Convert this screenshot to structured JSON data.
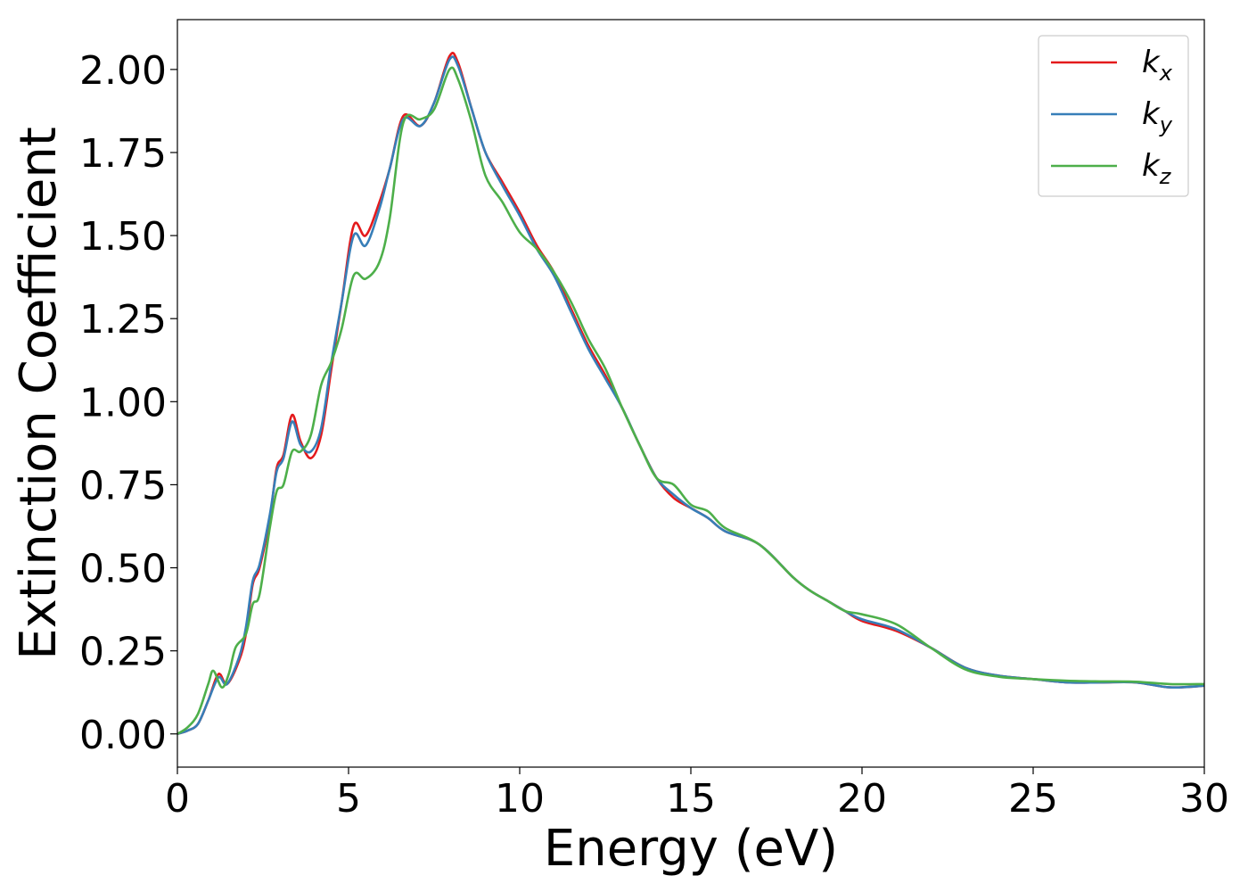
{
  "chart_data": {
    "type": "line",
    "xlabel": "Energy (eV)",
    "ylabel": "Extinction Coefficient",
    "xlim": [
      0,
      30
    ],
    "ylim": [
      -0.1,
      2.15
    ],
    "xticks": [
      "0",
      "5",
      "10",
      "15",
      "20",
      "25",
      "30"
    ],
    "yticks": [
      "0.00",
      "0.25",
      "0.50",
      "0.75",
      "1.00",
      "1.25",
      "1.50",
      "1.75",
      "2.00"
    ],
    "grid": false,
    "legend_position": "top-right",
    "series": [
      {
        "name": "k_x",
        "label_main": "k",
        "label_sub": "x",
        "color": "#e41a1c",
        "points": [
          [
            0,
            0.0
          ],
          [
            0.3,
            0.01
          ],
          [
            0.6,
            0.03
          ],
          [
            0.9,
            0.1
          ],
          [
            1.2,
            0.18
          ],
          [
            1.45,
            0.15
          ],
          [
            1.8,
            0.22
          ],
          [
            2.0,
            0.3
          ],
          [
            2.2,
            0.45
          ],
          [
            2.4,
            0.5
          ],
          [
            2.7,
            0.65
          ],
          [
            2.9,
            0.8
          ],
          [
            3.1,
            0.84
          ],
          [
            3.35,
            0.96
          ],
          [
            3.6,
            0.88
          ],
          [
            3.9,
            0.83
          ],
          [
            4.2,
            0.9
          ],
          [
            4.5,
            1.1
          ],
          [
            4.8,
            1.3
          ],
          [
            5.15,
            1.53
          ],
          [
            5.5,
            1.5
          ],
          [
            5.9,
            1.6
          ],
          [
            6.2,
            1.7
          ],
          [
            6.6,
            1.86
          ],
          [
            7.1,
            1.83
          ],
          [
            7.5,
            1.9
          ],
          [
            7.95,
            2.04
          ],
          [
            8.2,
            2.02
          ],
          [
            8.6,
            1.88
          ],
          [
            9.0,
            1.75
          ],
          [
            9.5,
            1.66
          ],
          [
            10.0,
            1.57
          ],
          [
            10.5,
            1.47
          ],
          [
            11.0,
            1.39
          ],
          [
            11.5,
            1.28
          ],
          [
            12.0,
            1.17
          ],
          [
            12.5,
            1.08
          ],
          [
            13.0,
            0.98
          ],
          [
            13.5,
            0.87
          ],
          [
            14.0,
            0.77
          ],
          [
            14.5,
            0.71
          ],
          [
            15.0,
            0.68
          ],
          [
            15.5,
            0.65
          ],
          [
            16.0,
            0.61
          ],
          [
            17.0,
            0.57
          ],
          [
            18.0,
            0.47
          ],
          [
            18.5,
            0.43
          ],
          [
            19.0,
            0.4
          ],
          [
            19.5,
            0.37
          ],
          [
            20.0,
            0.34
          ],
          [
            21.0,
            0.31
          ],
          [
            22.0,
            0.26
          ],
          [
            23.0,
            0.2
          ],
          [
            24.0,
            0.175
          ],
          [
            25.0,
            0.165
          ],
          [
            26.0,
            0.155
          ],
          [
            27.0,
            0.155
          ],
          [
            28.0,
            0.155
          ],
          [
            29.0,
            0.14
          ],
          [
            30.0,
            0.145
          ]
        ]
      },
      {
        "name": "k_y",
        "label_main": "k",
        "label_sub": "y",
        "color": "#377eb8",
        "points": [
          [
            0,
            0.0
          ],
          [
            0.3,
            0.01
          ],
          [
            0.6,
            0.03
          ],
          [
            0.9,
            0.1
          ],
          [
            1.2,
            0.17
          ],
          [
            1.45,
            0.15
          ],
          [
            1.8,
            0.23
          ],
          [
            2.0,
            0.32
          ],
          [
            2.2,
            0.46
          ],
          [
            2.4,
            0.51
          ],
          [
            2.7,
            0.66
          ],
          [
            2.9,
            0.79
          ],
          [
            3.1,
            0.83
          ],
          [
            3.35,
            0.94
          ],
          [
            3.6,
            0.87
          ],
          [
            3.9,
            0.85
          ],
          [
            4.2,
            0.92
          ],
          [
            4.5,
            1.12
          ],
          [
            4.8,
            1.3
          ],
          [
            5.15,
            1.5
          ],
          [
            5.5,
            1.47
          ],
          [
            5.9,
            1.58
          ],
          [
            6.2,
            1.7
          ],
          [
            6.6,
            1.85
          ],
          [
            7.1,
            1.83
          ],
          [
            7.5,
            1.9
          ],
          [
            7.95,
            2.03
          ],
          [
            8.2,
            2.01
          ],
          [
            8.6,
            1.88
          ],
          [
            9.0,
            1.75
          ],
          [
            9.5,
            1.65
          ],
          [
            10.0,
            1.56
          ],
          [
            10.5,
            1.46
          ],
          [
            11.0,
            1.38
          ],
          [
            11.5,
            1.27
          ],
          [
            12.0,
            1.16
          ],
          [
            12.5,
            1.07
          ],
          [
            13.0,
            0.98
          ],
          [
            13.5,
            0.87
          ],
          [
            14.0,
            0.77
          ],
          [
            14.5,
            0.72
          ],
          [
            15.0,
            0.68
          ],
          [
            15.5,
            0.65
          ],
          [
            16.0,
            0.61
          ],
          [
            17.0,
            0.57
          ],
          [
            18.0,
            0.47
          ],
          [
            18.5,
            0.43
          ],
          [
            19.0,
            0.4
          ],
          [
            19.5,
            0.37
          ],
          [
            20.0,
            0.345
          ],
          [
            21.0,
            0.315
          ],
          [
            22.0,
            0.26
          ],
          [
            23.0,
            0.2
          ],
          [
            24.0,
            0.175
          ],
          [
            25.0,
            0.165
          ],
          [
            26.0,
            0.155
          ],
          [
            27.0,
            0.155
          ],
          [
            28.0,
            0.155
          ],
          [
            29.0,
            0.14
          ],
          [
            30.0,
            0.145
          ]
        ]
      },
      {
        "name": "k_z",
        "label_main": "k",
        "label_sub": "z",
        "color": "#4daf4a",
        "points": [
          [
            0,
            0.0
          ],
          [
            0.3,
            0.02
          ],
          [
            0.6,
            0.06
          ],
          [
            0.9,
            0.15
          ],
          [
            1.05,
            0.19
          ],
          [
            1.3,
            0.14
          ],
          [
            1.5,
            0.18
          ],
          [
            1.7,
            0.26
          ],
          [
            2.0,
            0.3
          ],
          [
            2.2,
            0.39
          ],
          [
            2.4,
            0.42
          ],
          [
            2.7,
            0.62
          ],
          [
            2.9,
            0.73
          ],
          [
            3.1,
            0.75
          ],
          [
            3.35,
            0.85
          ],
          [
            3.6,
            0.85
          ],
          [
            3.9,
            0.9
          ],
          [
            4.2,
            1.05
          ],
          [
            4.5,
            1.12
          ],
          [
            4.8,
            1.22
          ],
          [
            5.15,
            1.38
          ],
          [
            5.5,
            1.37
          ],
          [
            5.9,
            1.42
          ],
          [
            6.2,
            1.55
          ],
          [
            6.6,
            1.84
          ],
          [
            7.1,
            1.85
          ],
          [
            7.5,
            1.88
          ],
          [
            7.95,
            2.0
          ],
          [
            8.2,
            1.97
          ],
          [
            8.6,
            1.84
          ],
          [
            9.0,
            1.68
          ],
          [
            9.5,
            1.6
          ],
          [
            10.0,
            1.51
          ],
          [
            10.5,
            1.46
          ],
          [
            11.0,
            1.39
          ],
          [
            11.5,
            1.3
          ],
          [
            12.0,
            1.19
          ],
          [
            12.5,
            1.1
          ],
          [
            13.0,
            0.98
          ],
          [
            13.5,
            0.87
          ],
          [
            14.0,
            0.77
          ],
          [
            14.5,
            0.75
          ],
          [
            15.0,
            0.69
          ],
          [
            15.5,
            0.67
          ],
          [
            16.0,
            0.62
          ],
          [
            17.0,
            0.57
          ],
          [
            18.0,
            0.47
          ],
          [
            18.5,
            0.43
          ],
          [
            19.0,
            0.4
          ],
          [
            19.5,
            0.37
          ],
          [
            20.0,
            0.36
          ],
          [
            21.0,
            0.33
          ],
          [
            22.0,
            0.26
          ],
          [
            23.0,
            0.195
          ],
          [
            24.0,
            0.172
          ],
          [
            25.0,
            0.165
          ],
          [
            26.0,
            0.16
          ],
          [
            27.0,
            0.158
          ],
          [
            28.0,
            0.157
          ],
          [
            29.0,
            0.15
          ],
          [
            30.0,
            0.15
          ]
        ]
      }
    ]
  }
}
